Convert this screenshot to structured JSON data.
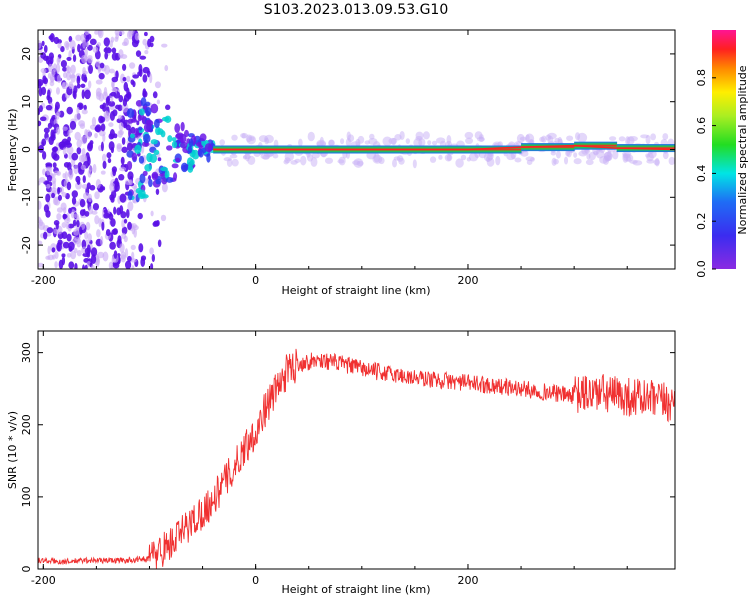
{
  "figure": {
    "title": "S103.2023.013.09.53.G10"
  },
  "colors": {
    "snr_line": "#f03030",
    "spectrum_ridge": "#ff2020",
    "scatter": "#5a10e6",
    "axis": "#000000"
  },
  "chart_data": [
    {
      "type": "heatmap",
      "title": "",
      "xlabel": "Height of straight line (km)",
      "ylabel": "Frequency (Hz)",
      "xlim": [
        -205,
        395
      ],
      "ylim": [
        -25,
        25
      ],
      "xticks": [
        -200,
        0,
        200
      ],
      "yticks": [
        -20,
        -10,
        0,
        10,
        20
      ],
      "colorbar": {
        "label": "Normalized spectral amplitude",
        "range": [
          0.0,
          1.0
        ],
        "ticks": [
          0.0,
          0.2,
          0.4,
          0.6,
          0.8
        ],
        "colormap": "rainbow"
      },
      "dominant_frequency_ridge": {
        "x": [
          -40,
          -20,
          0,
          50,
          100,
          150,
          200,
          250,
          300,
          340,
          395
        ],
        "y": [
          0,
          0,
          0,
          0,
          0,
          0,
          0,
          0.5,
          0.8,
          0.3,
          0
        ]
      }
    },
    {
      "type": "line",
      "title": "",
      "xlabel": "Height of straight line (km)",
      "ylabel": "SNR (10 * v/v)",
      "xlim": [
        -205,
        395
      ],
      "ylim": [
        0,
        330
      ],
      "xticks": [
        -200,
        0,
        200
      ],
      "yticks": [
        0,
        100,
        200,
        300
      ],
      "series": [
        {
          "x": [
            -205,
            -180,
            -160,
            -140,
            -120,
            -100,
            -90,
            -80,
            -70,
            -60,
            -50,
            -40,
            -30,
            -20,
            -10,
            0,
            10,
            20,
            30,
            40,
            60,
            80,
            100,
            120,
            150,
            200,
            250,
            300,
            320,
            340,
            360,
            380,
            395
          ],
          "y": [
            12,
            10,
            12,
            12,
            12,
            15,
            25,
            35,
            50,
            65,
            80,
            95,
            120,
            140,
            170,
            190,
            225,
            250,
            275,
            285,
            290,
            285,
            278,
            272,
            265,
            258,
            250,
            240,
            245,
            240,
            238,
            232,
            230
          ]
        }
      ]
    }
  ]
}
